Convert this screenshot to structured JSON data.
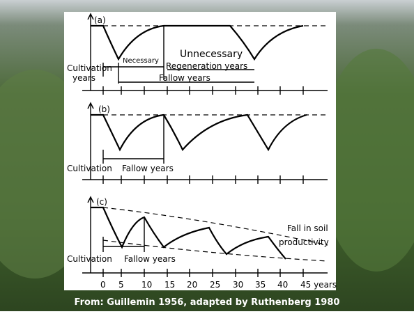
{
  "caption": "From: Guillemin 1956, adapted by Ruthenberg 1980",
  "panel_a": {
    "label": "(a)",
    "necessary": "Necessary",
    "unnecessary": "Unnecessary",
    "cultivation": [
      "Cultivation",
      "years"
    ],
    "regeneration": "Regeneration years",
    "fallow": "Fallow years"
  },
  "panel_b": {
    "label": "(b)",
    "cultivation": "Cultivation",
    "fallow": "Fallow years"
  },
  "panel_c": {
    "label": "(c)",
    "soil": [
      "Fall in soil",
      "productivity"
    ],
    "cultivation": "Cultivation",
    "fallow": "Fallow years",
    "axis_labels": [
      "0",
      "5",
      "10",
      "15",
      "20",
      "25",
      "30",
      "35",
      "40",
      "45 years"
    ]
  }
}
